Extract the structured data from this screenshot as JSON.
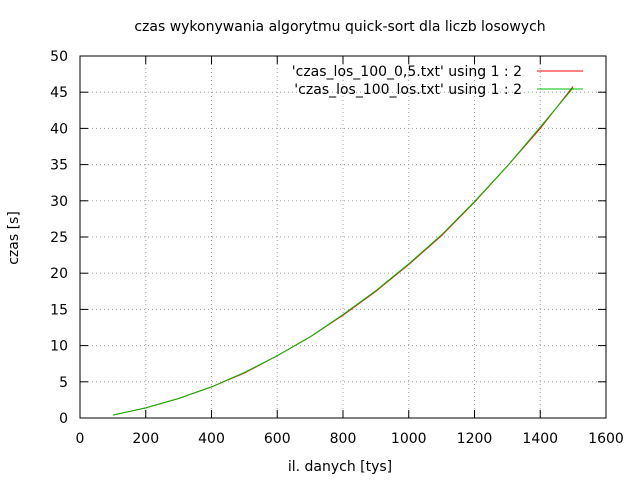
{
  "chart_data": {
    "type": "line",
    "title": "czas wykonywania algorytmu quick-sort dla liczb losowych",
    "xlabel": "il. danych [tys]",
    "ylabel": "czas [s]",
    "xlim": [
      0,
      1600
    ],
    "ylim": [
      0,
      50
    ],
    "xticks": [
      0,
      200,
      400,
      600,
      800,
      1000,
      1200,
      1400,
      1600
    ],
    "yticks": [
      0,
      5,
      10,
      15,
      20,
      25,
      30,
      35,
      40,
      45,
      50
    ],
    "grid": true,
    "legend_position": "top-right",
    "series": [
      {
        "name": "'czas_los_100_0,5.txt' using 1 : 2",
        "color": "#ff0000",
        "x": [
          100,
          200,
          300,
          400,
          500,
          600,
          700,
          800,
          900,
          1000,
          1100,
          1200,
          1300,
          1400,
          1500
        ],
        "y": [
          0.4,
          1.4,
          2.7,
          4.3,
          6.2,
          8.6,
          11.2,
          14.2,
          17.5,
          21.2,
          25.2,
          29.8,
          34.8,
          40.0,
          45.8
        ]
      },
      {
        "name": "'czas_los_100_los.txt' using 1 : 2",
        "color": "#00bb00",
        "x": [
          100,
          200,
          300,
          400,
          500,
          600,
          700,
          800,
          900,
          1000,
          1100,
          1200,
          1300,
          1400,
          1500
        ],
        "y": [
          0.4,
          1.4,
          2.7,
          4.3,
          6.3,
          8.6,
          11.2,
          14.3,
          17.6,
          21.3,
          25.3,
          29.9,
          34.8,
          40.2,
          45.6
        ]
      }
    ]
  }
}
